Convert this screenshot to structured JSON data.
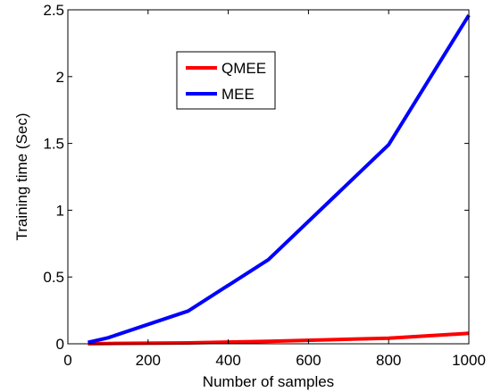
{
  "chart_data": {
    "type": "line",
    "title": "",
    "xlabel": "Number of samples",
    "ylabel": "Training time (Sec)",
    "xlim": [
      0,
      1000
    ],
    "ylim": [
      0,
      2.5
    ],
    "xticks": [
      0,
      200,
      400,
      600,
      800,
      1000
    ],
    "xtick_labels": [
      "0",
      "200",
      "400",
      "600",
      "800",
      "1000"
    ],
    "yticks": [
      0,
      0.5,
      1,
      1.5,
      2,
      2.5
    ],
    "ytick_labels": [
      "0",
      "0.5",
      "1",
      "1.5",
      "2",
      "2.5"
    ],
    "grid": false,
    "legend_position": "upper-left-center",
    "series": [
      {
        "name": "QMEE",
        "color": "#ff0000",
        "x": [
          50,
          100,
          300,
          500,
          800,
          1000
        ],
        "y": [
          0.0,
          0.002,
          0.007,
          0.018,
          0.042,
          0.078
        ]
      },
      {
        "name": "MEE",
        "color": "#0000ff",
        "x": [
          50,
          100,
          300,
          500,
          800,
          1000
        ],
        "y": [
          0.01,
          0.045,
          0.245,
          0.63,
          1.49,
          2.46
        ]
      }
    ]
  }
}
